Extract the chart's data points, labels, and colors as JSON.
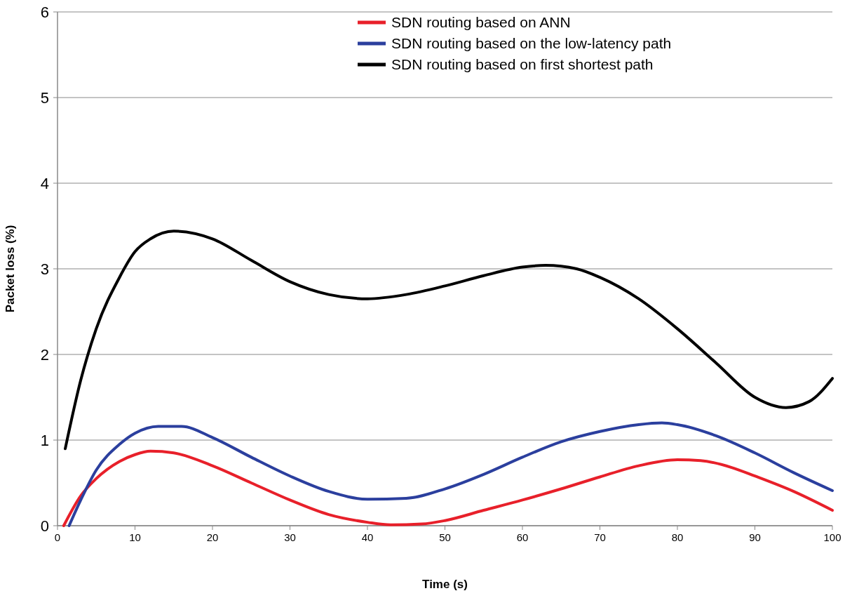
{
  "chart_data": {
    "type": "line",
    "xlabel": "Time (s)",
    "ylabel": "Packet loss (%)",
    "xlim": [
      0,
      100
    ],
    "xticks": [
      0,
      10,
      20,
      30,
      40,
      50,
      60,
      70,
      80,
      90,
      100
    ],
    "ylim": [
      0,
      6
    ],
    "yticks": [
      0,
      1,
      2,
      3,
      4,
      5,
      6
    ],
    "grid": "y",
    "legend": "top right",
    "marker": "none",
    "line_style": "solid",
    "series": [
      {
        "name": "SDN routing based on ANN",
        "color": "#e8202a",
        "x": [
          0.8,
          3,
          5,
          8,
          10,
          12,
          15,
          20,
          25,
          30,
          35,
          40,
          43,
          47,
          50,
          55,
          60,
          65,
          70,
          75,
          80,
          83,
          87,
          90,
          95,
          100
        ],
        "values": [
          0,
          0.35,
          0.55,
          0.75,
          0.83,
          0.87,
          0.85,
          0.7,
          0.5,
          0.3,
          0.13,
          0.04,
          0.01,
          0.02,
          0.06,
          0.18,
          0.3,
          0.43,
          0.57,
          0.7,
          0.77,
          0.76,
          0.68,
          0.58,
          0.4,
          0.18
        ]
      },
      {
        "name": "SDN routing based on the low-latency path",
        "color": "#2b3f9e",
        "x": [
          1.5,
          3,
          5,
          8,
          10,
          13,
          16,
          20,
          25,
          30,
          35,
          40,
          45,
          50,
          55,
          60,
          65,
          70,
          75,
          78,
          80,
          85,
          90,
          95,
          100
        ],
        "values": [
          0,
          0.3,
          0.65,
          0.95,
          1.08,
          1.16,
          1.16,
          1.03,
          0.8,
          0.58,
          0.4,
          0.31,
          0.32,
          0.43,
          0.6,
          0.8,
          0.98,
          1.1,
          1.18,
          1.2,
          1.18,
          1.05,
          0.85,
          0.62,
          0.41
        ]
      },
      {
        "name": "SDN routing based on first shortest path",
        "color": "#000000",
        "x": [
          1,
          3,
          5,
          8,
          10,
          12,
          15,
          20,
          25,
          30,
          35,
          40,
          45,
          50,
          55,
          60,
          63,
          67,
          70,
          75,
          80,
          85,
          90,
          94,
          97,
          100
        ],
        "values": [
          0.9,
          1.7,
          2.3,
          2.9,
          3.2,
          3.35,
          3.44,
          3.35,
          3.1,
          2.85,
          2.7,
          2.65,
          2.7,
          2.8,
          2.92,
          3.02,
          3.04,
          3.0,
          2.9,
          2.65,
          2.3,
          1.9,
          1.5,
          1.38,
          1.45,
          1.72
        ]
      }
    ]
  }
}
